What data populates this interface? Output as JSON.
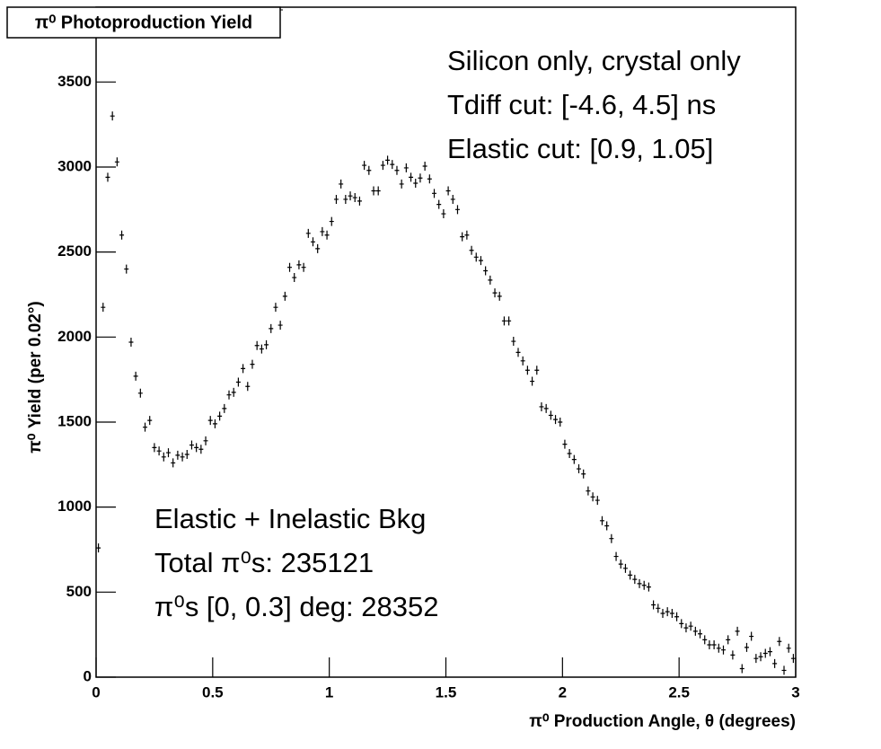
{
  "chart_data": {
    "type": "scatter",
    "title": "π⁰ Photoproduction Yield",
    "y_label": "π⁰ Yield (per 0.02°)",
    "x_label": "π⁰ Production Angle, θ (degrees)",
    "annotations_top": [
      "Silicon only, crystal only",
      "Tdiff cut: [-4.6, 4.5] ns",
      "Elastic cut: [0.9, 1.05]"
    ],
    "annotations_bottom": [
      "Elastic + Inelastic Bkg",
      "Total π⁰s: 235121",
      "π⁰s [0, 0.3] deg: 28352"
    ],
    "color": "#000000",
    "xlim": [
      0,
      3
    ],
    "ylim": [
      0,
      3940
    ],
    "xticks": [
      0,
      0.5,
      1,
      1.5,
      2,
      2.5,
      3
    ],
    "yticks": [
      0,
      500,
      1000,
      1500,
      2000,
      2500,
      3000,
      3500
    ],
    "x": [
      0.01,
      0.03,
      0.05,
      0.07,
      0.09,
      0.11,
      0.13,
      0.15,
      0.17,
      0.19,
      0.21,
      0.23,
      0.25,
      0.27,
      0.29,
      0.31,
      0.33,
      0.35,
      0.37,
      0.39,
      0.41,
      0.43,
      0.45,
      0.47,
      0.49,
      0.51,
      0.53,
      0.55,
      0.57,
      0.59,
      0.61,
      0.63,
      0.65,
      0.67,
      0.69,
      0.71,
      0.73,
      0.75,
      0.77,
      0.79,
      0.81,
      0.83,
      0.85,
      0.87,
      0.89,
      0.91,
      0.93,
      0.95,
      0.97,
      0.99,
      1.01,
      1.03,
      1.05,
      1.07,
      1.09,
      1.11,
      1.13,
      1.15,
      1.17,
      1.19,
      1.21,
      1.23,
      1.25,
      1.27,
      1.29,
      1.31,
      1.33,
      1.35,
      1.37,
      1.39,
      1.41,
      1.43,
      1.45,
      1.47,
      1.49,
      1.51,
      1.53,
      1.55,
      1.57,
      1.59,
      1.61,
      1.63,
      1.65,
      1.67,
      1.69,
      1.71,
      1.73,
      1.75,
      1.77,
      1.79,
      1.81,
      1.83,
      1.85,
      1.87,
      1.89,
      1.91,
      1.93,
      1.95,
      1.97,
      1.99,
      2.01,
      2.03,
      2.05,
      2.07,
      2.09,
      2.11,
      2.13,
      2.15,
      2.17,
      2.19,
      2.21,
      2.23,
      2.25,
      2.27,
      2.29,
      2.31,
      2.33,
      2.35,
      2.37,
      2.39,
      2.41,
      2.43,
      2.45,
      2.47,
      2.49,
      2.51,
      2.53,
      2.55,
      2.57,
      2.59,
      2.61,
      2.63,
      2.65,
      2.67,
      2.69,
      2.71,
      2.73,
      2.75,
      2.77,
      2.79,
      2.81,
      2.83,
      2.85,
      2.87,
      2.89,
      2.91,
      2.93,
      2.95,
      2.97,
      2.99
    ],
    "values": [
      760,
      2175,
      2940,
      3300,
      3030,
      2600,
      2400,
      1970,
      1770,
      1670,
      1470,
      1510,
      1350,
      1330,
      1295,
      1320,
      1260,
      1305,
      1295,
      1310,
      1365,
      1350,
      1340,
      1390,
      1510,
      1490,
      1535,
      1580,
      1660,
      1675,
      1735,
      1815,
      1710,
      1840,
      1950,
      1930,
      1955,
      2050,
      2175,
      2070,
      2240,
      2410,
      2350,
      2425,
      2410,
      2610,
      2560,
      2520,
      2620,
      2600,
      2680,
      2810,
      2900,
      2810,
      2830,
      2820,
      2800,
      3010,
      2980,
      2860,
      2860,
      3010,
      3040,
      3015,
      2980,
      2900,
      2995,
      2940,
      2905,
      2935,
      3005,
      2930,
      2845,
      2780,
      2725,
      2860,
      2810,
      2750,
      2590,
      2600,
      2510,
      2470,
      2450,
      2390,
      2335,
      2260,
      2240,
      2095,
      2095,
      1975,
      1910,
      1860,
      1805,
      1740,
      1805,
      1590,
      1580,
      1540,
      1515,
      1500,
      1370,
      1315,
      1280,
      1225,
      1195,
      1095,
      1060,
      1040,
      920,
      890,
      815,
      710,
      665,
      640,
      600,
      575,
      550,
      540,
      530,
      425,
      405,
      375,
      385,
      375,
      355,
      315,
      290,
      300,
      270,
      255,
      220,
      190,
      190,
      170,
      160,
      220,
      130,
      270,
      50,
      175,
      240,
      110,
      120,
      140,
      150,
      80,
      210,
      40,
      170,
      110
    ]
  }
}
